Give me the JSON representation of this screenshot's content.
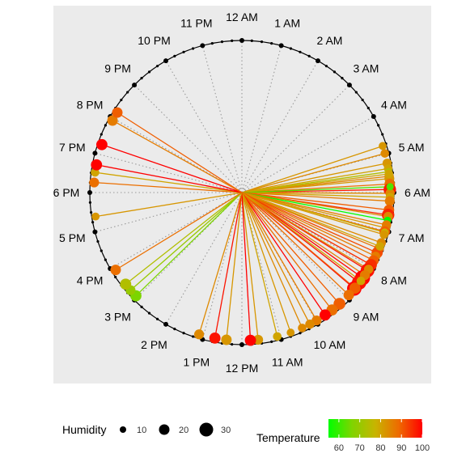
{
  "chart_data": {
    "type": "scatter",
    "coordinate_system": "polar-clock",
    "hour_labels": [
      "12 AM",
      "1 AM",
      "2 AM",
      "3 AM",
      "4 AM",
      "5 AM",
      "6 AM",
      "7 AM",
      "8 AM",
      "9 AM",
      "10 AM",
      "11 AM",
      "12 PM",
      "1 PM",
      "2 PM",
      "3 PM",
      "4 PM",
      "5 PM",
      "6 PM",
      "7 PM",
      "8 PM",
      "9 PM",
      "10 PM",
      "11 PM"
    ],
    "grid": true,
    "points_hour_temp_humidity": [
      [
        4.78,
        82,
        12
      ],
      [
        4.98,
        84,
        14
      ],
      [
        5.24,
        82,
        16
      ],
      [
        5.38,
        80,
        14
      ],
      [
        5.46,
        74,
        10
      ],
      [
        5.58,
        85,
        16
      ],
      [
        5.64,
        82,
        18
      ],
      [
        5.78,
        88,
        20
      ],
      [
        5.92,
        97,
        26
      ],
      [
        5.52,
        80,
        14
      ],
      [
        6.02,
        84,
        16
      ],
      [
        5.85,
        62,
        10
      ],
      [
        6.12,
        80,
        14
      ],
      [
        6.22,
        86,
        18
      ],
      [
        6.45,
        90,
        20
      ],
      [
        6.58,
        96,
        26
      ],
      [
        6.62,
        84,
        16
      ],
      [
        6.72,
        55,
        10
      ],
      [
        6.92,
        82,
        14
      ],
      [
        6.84,
        86,
        16
      ],
      [
        7.02,
        90,
        20
      ],
      [
        7.04,
        78,
        12
      ],
      [
        7.1,
        82,
        14
      ],
      [
        7.32,
        84,
        16
      ],
      [
        7.48,
        88,
        18
      ],
      [
        7.6,
        92,
        22
      ],
      [
        7.42,
        80,
        14
      ],
      [
        7.7,
        86,
        16
      ],
      [
        7.82,
        90,
        20
      ],
      [
        7.95,
        95,
        24
      ],
      [
        8.12,
        98,
        30
      ],
      [
        8.35,
        100,
        34
      ],
      [
        8.5,
        98,
        32
      ],
      [
        8.7,
        100,
        32
      ],
      [
        8.08,
        84,
        16
      ],
      [
        8.26,
        86,
        18
      ],
      [
        8.68,
        90,
        22
      ],
      [
        8.92,
        88,
        20
      ],
      [
        8.44,
        80,
        14
      ],
      [
        9.25,
        90,
        24
      ],
      [
        9.5,
        88,
        22
      ],
      [
        9.72,
        100,
        22
      ],
      [
        9.98,
        86,
        18
      ],
      [
        10.18,
        84,
        16
      ],
      [
        10.4,
        84,
        14
      ],
      [
        10.72,
        82,
        12
      ],
      [
        11.08,
        80,
        14
      ],
      [
        11.58,
        82,
        18
      ],
      [
        11.78,
        100,
        22
      ],
      [
        12.4,
        82,
        20
      ],
      [
        12.7,
        98,
        22
      ],
      [
        13.12,
        84,
        18
      ],
      [
        15.05,
        66,
        22
      ],
      [
        15.25,
        70,
        18
      ],
      [
        15.45,
        74,
        22
      ],
      [
        15.9,
        88,
        20
      ],
      [
        17.38,
        82,
        12
      ],
      [
        18.26,
        88,
        18
      ],
      [
        18.52,
        80,
        14
      ],
      [
        18.72,
        100,
        22
      ],
      [
        19.26,
        100,
        22
      ],
      [
        19.94,
        86,
        20
      ],
      [
        20.18,
        90,
        20
      ]
    ],
    "size_legend": {
      "title": "Humidity",
      "labels": [
        "10",
        "20",
        "30"
      ]
    },
    "color_legend": {
      "title": "Temperature",
      "labels": [
        "60",
        "70",
        "80",
        "90",
        "100"
      ],
      "min": 55,
      "max": 100
    },
    "colors": {
      "panel_bg": "#ebebeb",
      "grid": "#9a9a9a",
      "low": "#00ff00",
      "mid": "#c8b400",
      "high": "#ff0000"
    }
  }
}
